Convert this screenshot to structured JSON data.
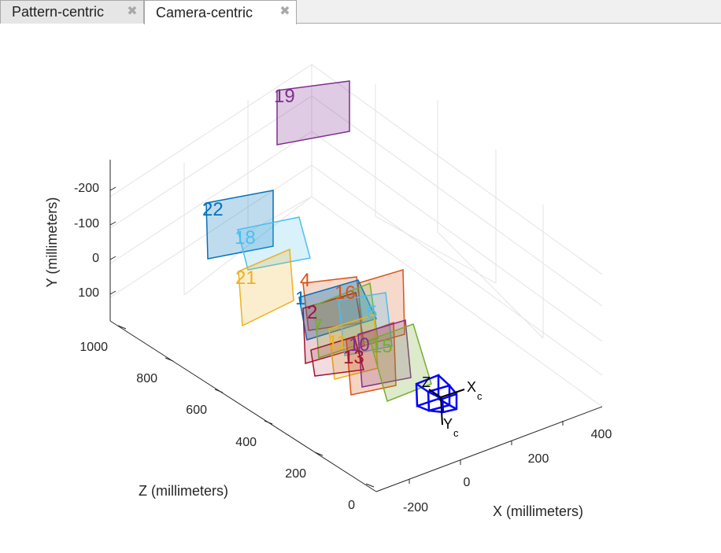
{
  "tabs": [
    {
      "label": "Pattern-centric",
      "active": false
    },
    {
      "label": "Camera-centric",
      "active": true
    }
  ],
  "icons": {
    "tab_close": "close-icon"
  },
  "chart_data": {
    "type": "3d-extrinsics",
    "title": "",
    "xlabel": "X (millimeters)",
    "ylabel": "Y (millimeters)",
    "zlabel": "Z (millimeters)",
    "x_ticks": [
      "-200",
      "0",
      "200",
      "400"
    ],
    "y_ticks": [
      "-200",
      "-100",
      "0",
      "100"
    ],
    "z_ticks": [
      "0",
      "200",
      "400",
      "600",
      "800",
      "1000"
    ],
    "camera_axis_labels": {
      "x": "X",
      "y": "Y",
      "z": "Z",
      "subscript": "c"
    },
    "camera_color": "#0000ff",
    "grid": true,
    "patterns": [
      {
        "id": "19",
        "color": "#7e2f8e"
      },
      {
        "id": "22",
        "color": "#0072bd"
      },
      {
        "id": "18",
        "color": "#4dbeee"
      },
      {
        "id": "21",
        "color": "#edb120"
      },
      {
        "id": "4",
        "color": "#d95319"
      },
      {
        "id": "16",
        "color": "#d95319"
      },
      {
        "id": "1",
        "color": "#0072bd"
      },
      {
        "id": "2",
        "color": "#a2142f"
      },
      {
        "id": "7",
        "color": "#77ac30"
      },
      {
        "id": "11",
        "color": "#edb120"
      },
      {
        "id": "10",
        "color": "#7e2f8e"
      },
      {
        "id": "15",
        "color": "#77ac30"
      },
      {
        "id": "13",
        "color": "#a2142f"
      },
      {
        "id": "5",
        "color": "#4dbeee"
      }
    ]
  }
}
